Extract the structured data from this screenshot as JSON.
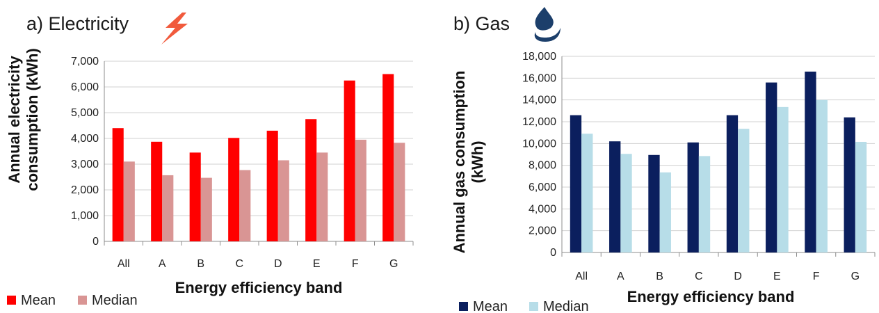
{
  "colors": {
    "elec_mean": "#ff0000",
    "elec_median": "#d99594",
    "gas_mean": "#0b1f5e",
    "gas_median": "#b7dde8",
    "grid": "#d0d0d0",
    "bolt_icon": "#f15a3c",
    "flame_icon": "#1c3f6b"
  },
  "icons": {
    "electricity": "lightning-bolt-icon",
    "gas": "flame-icon"
  },
  "chart_data": [
    {
      "type": "bar",
      "title": "a) Electricity",
      "xlabel": "Energy efficiency band",
      "ylabel_lines": [
        "Annual electricity",
        "consumption (kWh)"
      ],
      "ylim": [
        0,
        7000
      ],
      "yticks": [
        "0",
        "1,000",
        "2,000",
        "3,000",
        "4,000",
        "5,000",
        "6,000",
        "7,000"
      ],
      "grid": true,
      "legend_position": "bottom-left",
      "categories": [
        "All",
        "A",
        "B",
        "C",
        "D",
        "E",
        "F",
        "G"
      ],
      "series": [
        {
          "name": "Mean",
          "values": [
            4400,
            3870,
            3450,
            4020,
            4300,
            4750,
            6250,
            6500
          ]
        },
        {
          "name": "Median",
          "values": [
            3100,
            2570,
            2470,
            2770,
            3150,
            3450,
            3950,
            3830
          ]
        }
      ]
    },
    {
      "type": "bar",
      "title": "b) Gas",
      "xlabel": "Energy efficiency band",
      "ylabel_lines": [
        "Annual gas consumption",
        "(kWh)"
      ],
      "ylim": [
        0,
        18000
      ],
      "yticks": [
        "0",
        "2,000",
        "4,000",
        "6,000",
        "8,000",
        "10,000",
        "12,000",
        "14,000",
        "16,000",
        "18,000"
      ],
      "grid": true,
      "legend_position": "bottom-left",
      "categories": [
        "All",
        "A",
        "B",
        "C",
        "D",
        "E",
        "F",
        "G"
      ],
      "series": [
        {
          "name": "Mean",
          "values": [
            12600,
            10200,
            8950,
            10100,
            12600,
            15600,
            16600,
            12400
          ]
        },
        {
          "name": "Median",
          "values": [
            10900,
            9050,
            7350,
            8850,
            11350,
            13350,
            14000,
            10150
          ]
        }
      ]
    }
  ]
}
